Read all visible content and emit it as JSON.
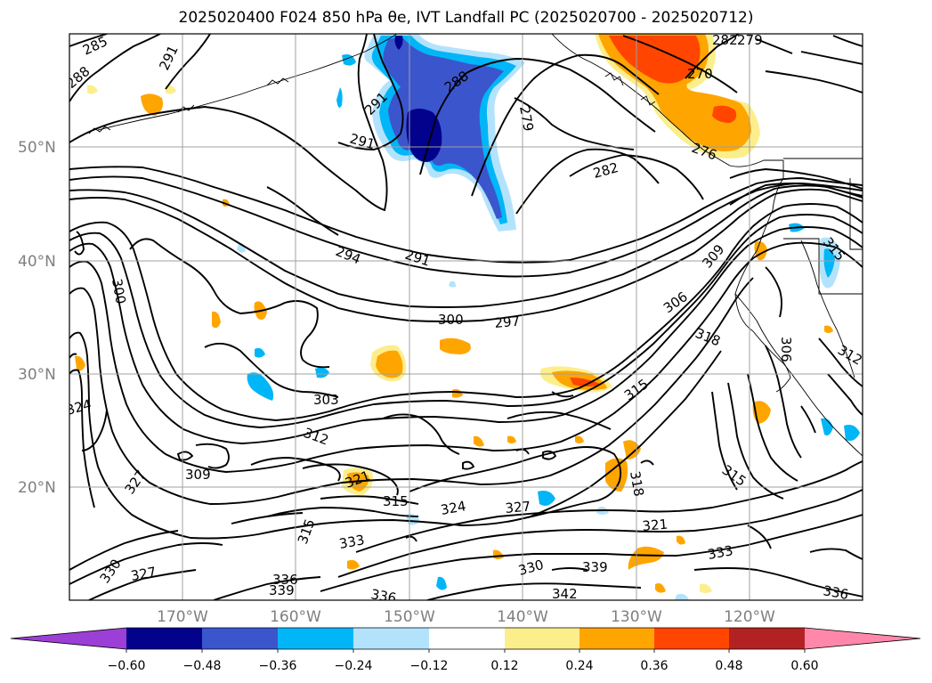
{
  "title": "2025020400 F024 850 hPa θe, IVT Landfall PC (2025020700 - 2025020712)",
  "map": {
    "longitude_labels": [
      "170°W",
      "160°W",
      "150°W",
      "140°W",
      "130°W",
      "120°W"
    ],
    "latitude_labels": [
      "50°N",
      "40°N",
      "30°N",
      "20°N"
    ]
  },
  "contour_labels": [
    "285",
    "291",
    "288",
    "291",
    "288",
    "279",
    "291",
    "282",
    "282",
    "279",
    "270",
    "276",
    "294",
    "291",
    "300",
    "297",
    "306",
    "309",
    "300",
    "318",
    "303",
    "315",
    "306",
    "324",
    "312",
    "309",
    "327",
    "321",
    "315",
    "324",
    "327",
    "315",
    "318",
    "315",
    "321",
    "333",
    "330",
    "327",
    "336",
    "339",
    "336",
    "330",
    "339",
    "342",
    "333",
    "336",
    "312",
    "315"
  ],
  "colorbar": {
    "ticks": [
      "−0.60",
      "−0.48",
      "−0.36",
      "−0.24",
      "−0.12",
      "0.12",
      "0.24",
      "0.36",
      "0.48",
      "0.60"
    ],
    "colors": [
      "#9c3fd6",
      "#02028c",
      "#3b55cc",
      "#00b6f7",
      "#b3e3fc",
      "#ffffff",
      "#fdee8c",
      "#ffa500",
      "#ff4500",
      "#b22222",
      "#ff88aa"
    ]
  }
}
